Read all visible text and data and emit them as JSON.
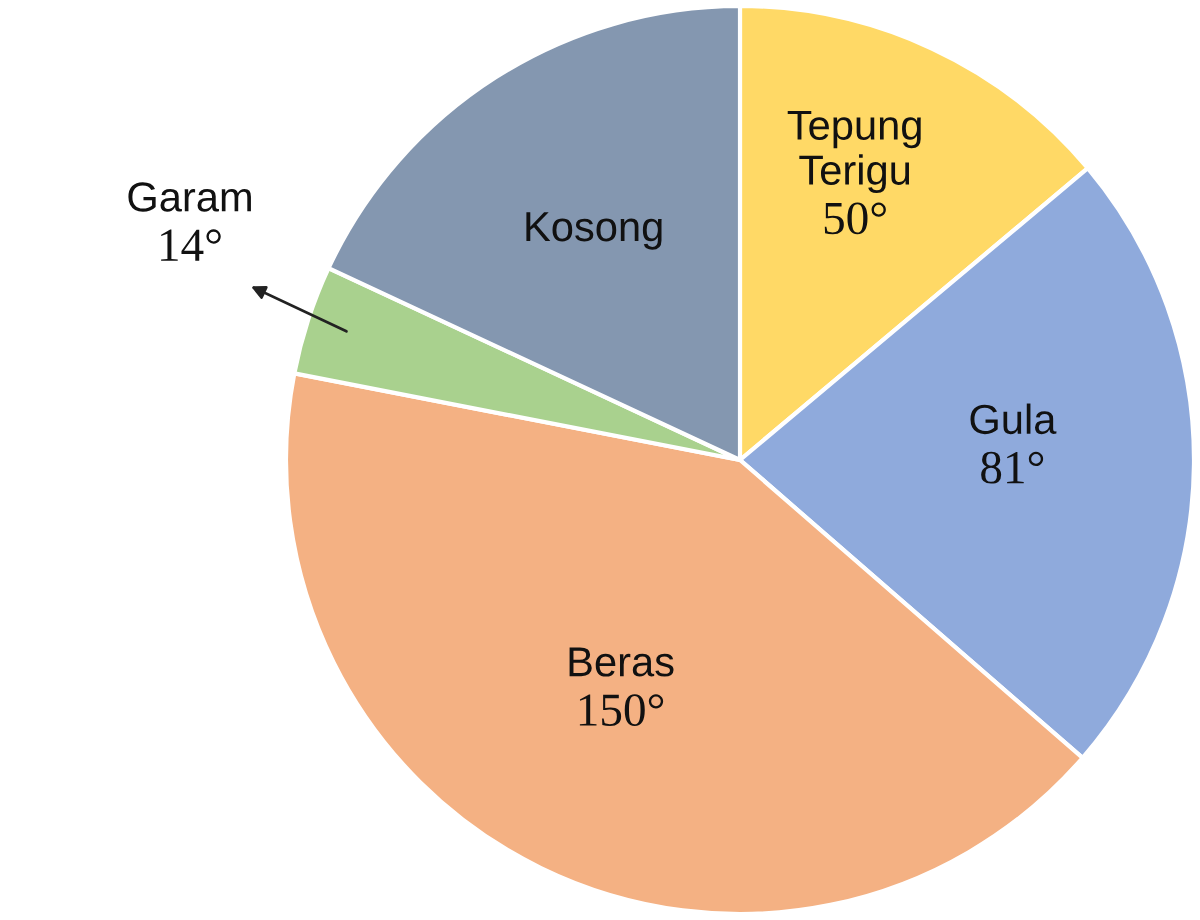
{
  "chart_data": {
    "type": "pie",
    "categories": [
      "Tepung Terigu",
      "Gula",
      "Beras",
      "Garam",
      "Kosong"
    ],
    "values": [
      50,
      81,
      150,
      14,
      65
    ],
    "colors": [
      "#ffd966",
      "#8faadc",
      "#f4b183",
      "#a9d18e",
      "#8497b0"
    ],
    "value_labels": [
      "50°",
      "81°",
      "150°",
      "14°",
      null
    ]
  }
}
